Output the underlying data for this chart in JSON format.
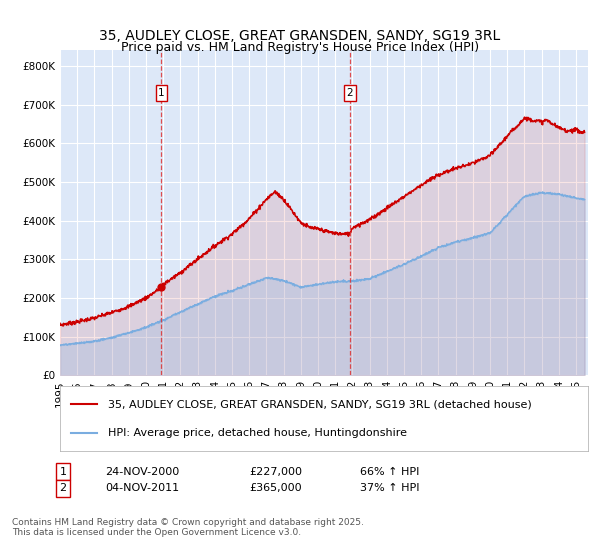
{
  "title": "35, AUDLEY CLOSE, GREAT GRANSDEN, SANDY, SG19 3RL",
  "subtitle": "Price paid vs. HM Land Registry's House Price Index (HPI)",
  "ylabel_ticks": [
    "£0",
    "£100K",
    "£200K",
    "£300K",
    "£400K",
    "£500K",
    "£600K",
    "£700K",
    "£800K"
  ],
  "ytick_values": [
    0,
    100000,
    200000,
    300000,
    400000,
    500000,
    600000,
    700000,
    800000
  ],
  "ylim": [
    0,
    840000
  ],
  "xlim_start": 1995.0,
  "xlim_end": 2025.7,
  "xticks": [
    1995,
    1996,
    1997,
    1998,
    1999,
    2000,
    2001,
    2002,
    2003,
    2004,
    2005,
    2006,
    2007,
    2008,
    2009,
    2010,
    2011,
    2012,
    2013,
    2014,
    2015,
    2016,
    2017,
    2018,
    2019,
    2020,
    2021,
    2022,
    2023,
    2024,
    2025
  ],
  "background_color": "#dde8f8",
  "grid_color": "#ffffff",
  "red_line_color": "#cc0000",
  "blue_line_color": "#7aade0",
  "marker1_date": 2000.9,
  "marker2_date": 2011.84,
  "marker1_value": 227000,
  "marker2_value": 365000,
  "legend_label1": "35, AUDLEY CLOSE, GREAT GRANSDEN, SANDY, SG19 3RL (detached house)",
  "legend_label2": "HPI: Average price, detached house, Huntingdonshire",
  "footer": "Contains HM Land Registry data © Crown copyright and database right 2025.\nThis data is licensed under the Open Government Licence v3.0.",
  "title_fontsize": 10,
  "tick_fontsize": 7.5,
  "legend_fontsize": 8,
  "note_fontsize": 8,
  "footer_fontsize": 6.5,
  "red_custom_years": [
    1995,
    1996,
    1997,
    1998,
    1999,
    2000,
    2000.9,
    2001,
    2002,
    2003,
    2004,
    2005,
    2006,
    2007,
    2007.5,
    2008,
    2008.5,
    2009,
    2009.5,
    2010,
    2010.5,
    2011,
    2011.5,
    2011.84,
    2012,
    2013,
    2014,
    2015,
    2016,
    2017,
    2018,
    2019,
    2020,
    2021,
    2022,
    2022.5,
    2023,
    2023.3,
    2023.7,
    2024,
    2024.5,
    2025,
    2025.3
  ],
  "red_custom_vals": [
    130000,
    138000,
    148000,
    162000,
    178000,
    200000,
    227000,
    235000,
    265000,
    300000,
    335000,
    365000,
    405000,
    455000,
    475000,
    455000,
    425000,
    395000,
    382000,
    378000,
    372000,
    367000,
    365000,
    365000,
    382000,
    402000,
    432000,
    462000,
    492000,
    518000,
    535000,
    548000,
    568000,
    618000,
    665000,
    660000,
    655000,
    660000,
    648000,
    640000,
    632000,
    635000,
    628000
  ],
  "blue_custom_years": [
    1995,
    1996,
    1997,
    1998,
    1999,
    2000,
    2001,
    2002,
    2003,
    2004,
    2005,
    2006,
    2007,
    2008,
    2009,
    2010,
    2011,
    2012,
    2013,
    2014,
    2015,
    2016,
    2017,
    2018,
    2019,
    2020,
    2021,
    2022,
    2023,
    2024,
    2025.3
  ],
  "blue_custom_vals": [
    78000,
    82000,
    88000,
    97000,
    110000,
    124000,
    142000,
    163000,
    184000,
    204000,
    218000,
    235000,
    252000,
    245000,
    228000,
    235000,
    242000,
    243000,
    250000,
    268000,
    287000,
    308000,
    330000,
    344000,
    355000,
    368000,
    415000,
    463000,
    472000,
    468000,
    455000
  ]
}
